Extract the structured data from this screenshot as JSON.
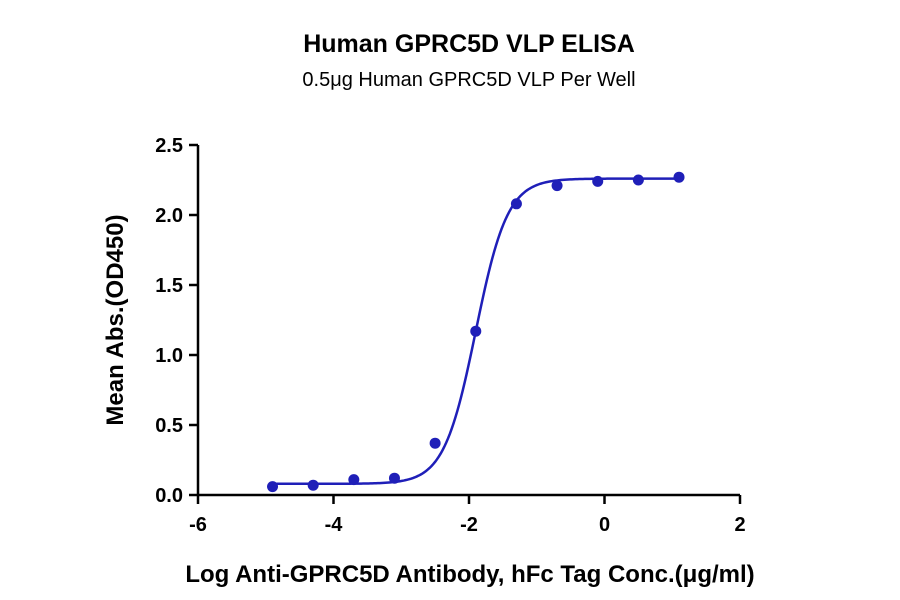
{
  "chart_data": {
    "type": "scatter",
    "title": "Human GPRC5D VLP ELISA",
    "subtitle": "0.5μg Human GPRC5D VLP Per Well",
    "xlabel": "Log Anti-GPRC5D Antibody, hFc Tag Conc.(μg/ml)",
    "ylabel": "Mean Abs.(OD450)",
    "xlim": [
      -6,
      2
    ],
    "ylim": [
      0,
      2.5
    ],
    "x_ticks": [
      -6,
      -4,
      -2,
      0,
      2
    ],
    "x_tick_labels": [
      "-6",
      "-4",
      "-2",
      "0",
      "2"
    ],
    "y_ticks": [
      0,
      0.5,
      1.0,
      1.5,
      2.0,
      2.5
    ],
    "y_tick_labels": [
      "0.0",
      "0.5",
      "1.0",
      "1.5",
      "2.0",
      "2.5"
    ],
    "series": [
      {
        "name": "Human GPRC5D VLP",
        "color": "#1f1fb8",
        "x": [
          -4.9,
          -4.3,
          -3.7,
          -3.1,
          -2.5,
          -1.9,
          -1.3,
          -0.7,
          -0.1,
          0.5,
          1.1
        ],
        "y": [
          0.06,
          0.07,
          0.11,
          0.12,
          0.37,
          1.17,
          2.08,
          2.21,
          2.24,
          2.25,
          2.27
        ]
      }
    ],
    "fit": {
      "model": "4PL",
      "bottom": 0.08,
      "top": 2.26,
      "log_ec50": -1.9,
      "hill_slope": 1.85,
      "color": "#1f1fb8"
    }
  }
}
